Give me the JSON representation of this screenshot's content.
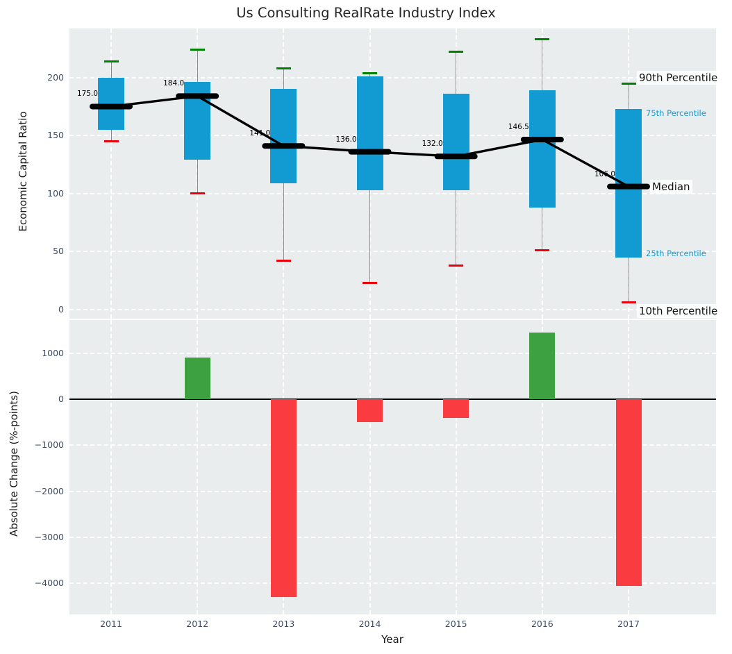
{
  "title": "Us Consulting RealRate Industry Index",
  "background": {
    "figure": "#FFFFFF",
    "axes": "#E9EDEE",
    "grid": "#FFFFFF",
    "tick_text": "#3D4C63"
  },
  "chart_data": [
    {
      "type": "box",
      "title": "Us Consulting RealRate Industry Index",
      "ylabel": "Economic Capital Ratio",
      "categories": [
        "2011",
        "2012",
        "2013",
        "2014",
        "2015",
        "2016",
        "2017"
      ],
      "series": {
        "p90": [
          214,
          224,
          208,
          204,
          222,
          233,
          195
        ],
        "q3": [
          200,
          196,
          190,
          201,
          186,
          189,
          173
        ],
        "median": [
          175,
          184,
          141,
          136,
          132,
          146.5,
          106
        ],
        "q1": [
          155,
          129,
          109,
          103,
          103,
          88,
          45
        ],
        "p10": [
          145,
          100,
          42,
          23,
          38,
          51,
          6
        ]
      },
      "median_labels": [
        "175.0",
        "184.0",
        "141.0",
        "136.0",
        "132.0",
        "146.5",
        "106.0"
      ],
      "ytick_values": [
        0,
        50,
        100,
        150,
        200
      ],
      "ytick_labels": [
        "0",
        "50",
        "100",
        "150",
        "200"
      ],
      "ylim": [
        -7,
        242
      ],
      "grid": true,
      "legend_position": "right-annotations",
      "annotations": [
        "90th Percentile",
        "75th Percentile",
        "Median",
        "25th Percentile",
        "10th Percentile"
      ],
      "colors": {
        "box": "#129BD3",
        "median_line": "#000000",
        "p90_cap": "#008000",
        "p10_cap": "#E8000D",
        "whisker": "#888888",
        "percentile_label_blue": "#129BD3"
      }
    },
    {
      "type": "bar",
      "ylabel": "Absolute Change (%-points)",
      "xlabel": "Year",
      "categories": [
        "2011",
        "2012",
        "2013",
        "2014",
        "2015",
        "2016",
        "2017"
      ],
      "values": [
        null,
        900,
        -4300,
        -500,
        -400,
        1450,
        -4050
      ],
      "ytick_values": [
        1000,
        0,
        -1000,
        -2000,
        -3000,
        -4000
      ],
      "ytick_labels": [
        "1000",
        "0",
        "−1000",
        "−2000",
        "−3000",
        "−4000"
      ],
      "ylim": [
        -4680,
        1720
      ],
      "grid": true,
      "colors": {
        "positive": "#3DA142",
        "negative": "#FA3C41",
        "zero_line": "#000000"
      }
    }
  ]
}
